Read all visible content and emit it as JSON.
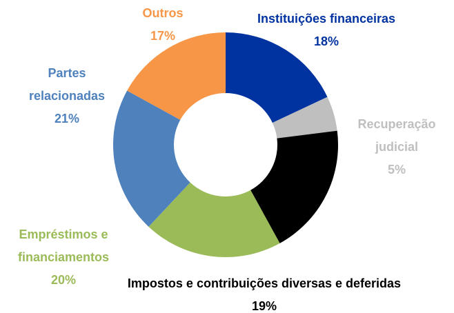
{
  "chart_data": {
    "type": "donut",
    "categories": [
      "Instituições financeiras",
      "Recuperação judicial",
      "Impostos e contribuições diversas e deferidas",
      "Empréstimos e financiamentos",
      "Partes relacionadas",
      "Outros"
    ],
    "values": [
      18,
      5,
      19,
      20,
      21,
      17
    ],
    "value_labels": [
      "18%",
      "5%",
      "19%",
      "20%",
      "21%",
      "17%"
    ],
    "colors": [
      "#0033a0",
      "#bfbfbf",
      "#000000",
      "#9bbb59",
      "#4f81bd",
      "#f79646"
    ],
    "label_colors": [
      "#0033a0",
      "#bfbfbf",
      "#000000",
      "#9bbb59",
      "#4f81bd",
      "#f79646"
    ]
  }
}
